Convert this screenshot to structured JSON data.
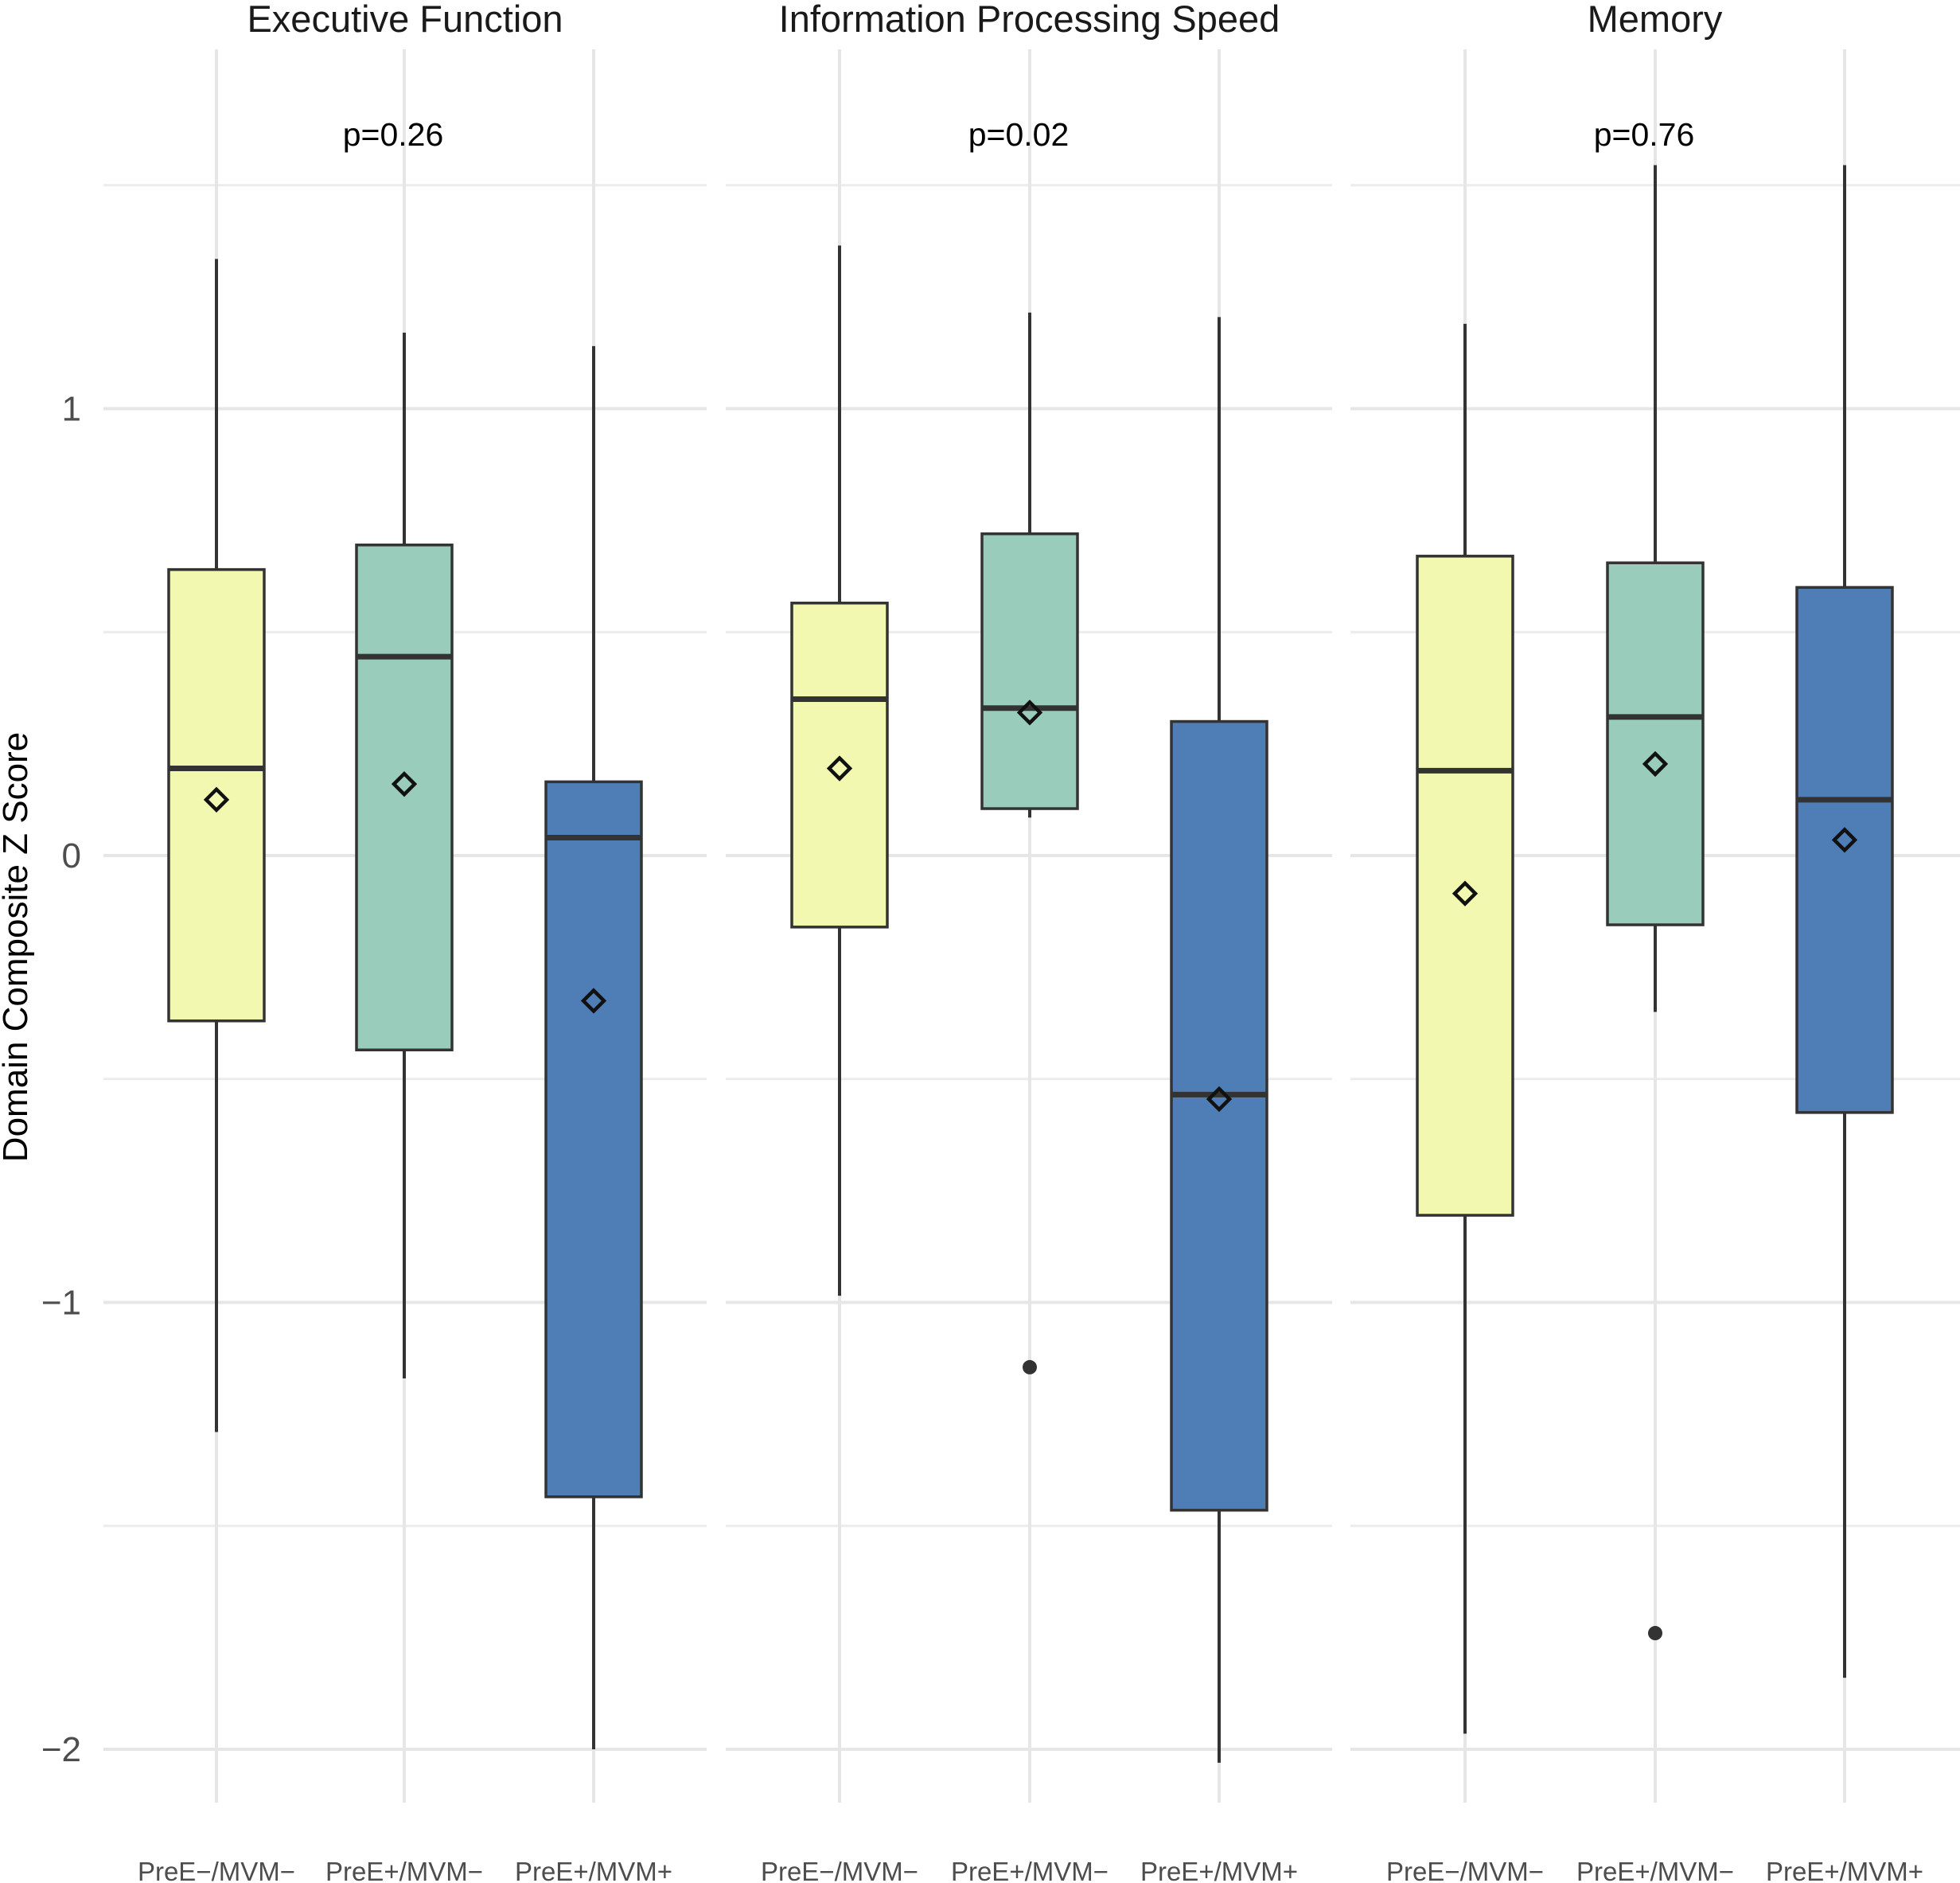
{
  "chart_data": {
    "type": "box",
    "ylabel": "Domain Composite Z Score",
    "xlabel": "",
    "ylim": [
      -2.15,
      1.72
    ],
    "yticks": [
      -2,
      -1,
      0,
      1
    ],
    "ytick_labels": [
      "−2",
      "−1",
      "0",
      "1"
    ],
    "groups": [
      "PreE−/MVM−",
      "PreE+/MVM−",
      "PreE+/MVM+"
    ],
    "group_colors": [
      "#f2f8b0",
      "#99ccbb",
      "#4f7db5"
    ],
    "panels": [
      {
        "title": "Executive Function",
        "p_value": "p=0.26",
        "boxes": [
          {
            "group": "PreE−/MVM−",
            "whisker_low": -1.29,
            "q1": -0.37,
            "median": 0.195,
            "q3": 0.64,
            "whisker_high": 1.335,
            "mean": 0.125,
            "outliers": []
          },
          {
            "group": "PreE+/MVM−",
            "whisker_low": -1.17,
            "q1": -0.435,
            "median": 0.445,
            "q3": 0.695,
            "whisker_high": 1.17,
            "mean": 0.16,
            "outliers": []
          },
          {
            "group": "PreE+/MVM+",
            "whisker_low": -2.0,
            "q1": -1.435,
            "median": 0.04,
            "q3": 0.165,
            "whisker_high": 1.14,
            "mean": -0.325,
            "outliers": []
          }
        ]
      },
      {
        "title": "Information Processing Speed",
        "p_value": "p=0.02",
        "boxes": [
          {
            "group": "PreE−/MVM−",
            "whisker_low": -0.985,
            "q1": -0.16,
            "median": 0.35,
            "q3": 0.565,
            "whisker_high": 1.365,
            "mean": 0.195,
            "outliers": []
          },
          {
            "group": "PreE+/MVM−",
            "whisker_low": 0.085,
            "q1": 0.105,
            "median": 0.33,
            "q3": 0.72,
            "whisker_high": 1.215,
            "mean": 0.32,
            "outliers": [
              -1.145
            ]
          },
          {
            "group": "PreE+/MVM+",
            "whisker_low": -2.03,
            "q1": -1.465,
            "median": -0.535,
            "q3": 0.3,
            "whisker_high": 1.205,
            "mean": -0.545,
            "outliers": []
          }
        ]
      },
      {
        "title": "Memory",
        "p_value": "p=0.76",
        "boxes": [
          {
            "group": "PreE−/MVM−",
            "whisker_low": -1.965,
            "q1": -0.805,
            "median": 0.19,
            "q3": 0.67,
            "whisker_high": 1.19,
            "mean": -0.085,
            "outliers": []
          },
          {
            "group": "PreE+/MVM−",
            "whisker_low": -0.35,
            "q1": -0.155,
            "median": 0.31,
            "q3": 0.655,
            "whisker_high": 1.545,
            "mean": 0.205,
            "outliers": [
              -1.74
            ]
          },
          {
            "group": "PreE+/MVM+",
            "whisker_low": -1.84,
            "q1": -0.575,
            "median": 0.125,
            "q3": 0.6,
            "whisker_high": 1.545,
            "mean": 0.035,
            "outliers": []
          }
        ]
      }
    ],
    "grid": true,
    "legend": "none"
  }
}
